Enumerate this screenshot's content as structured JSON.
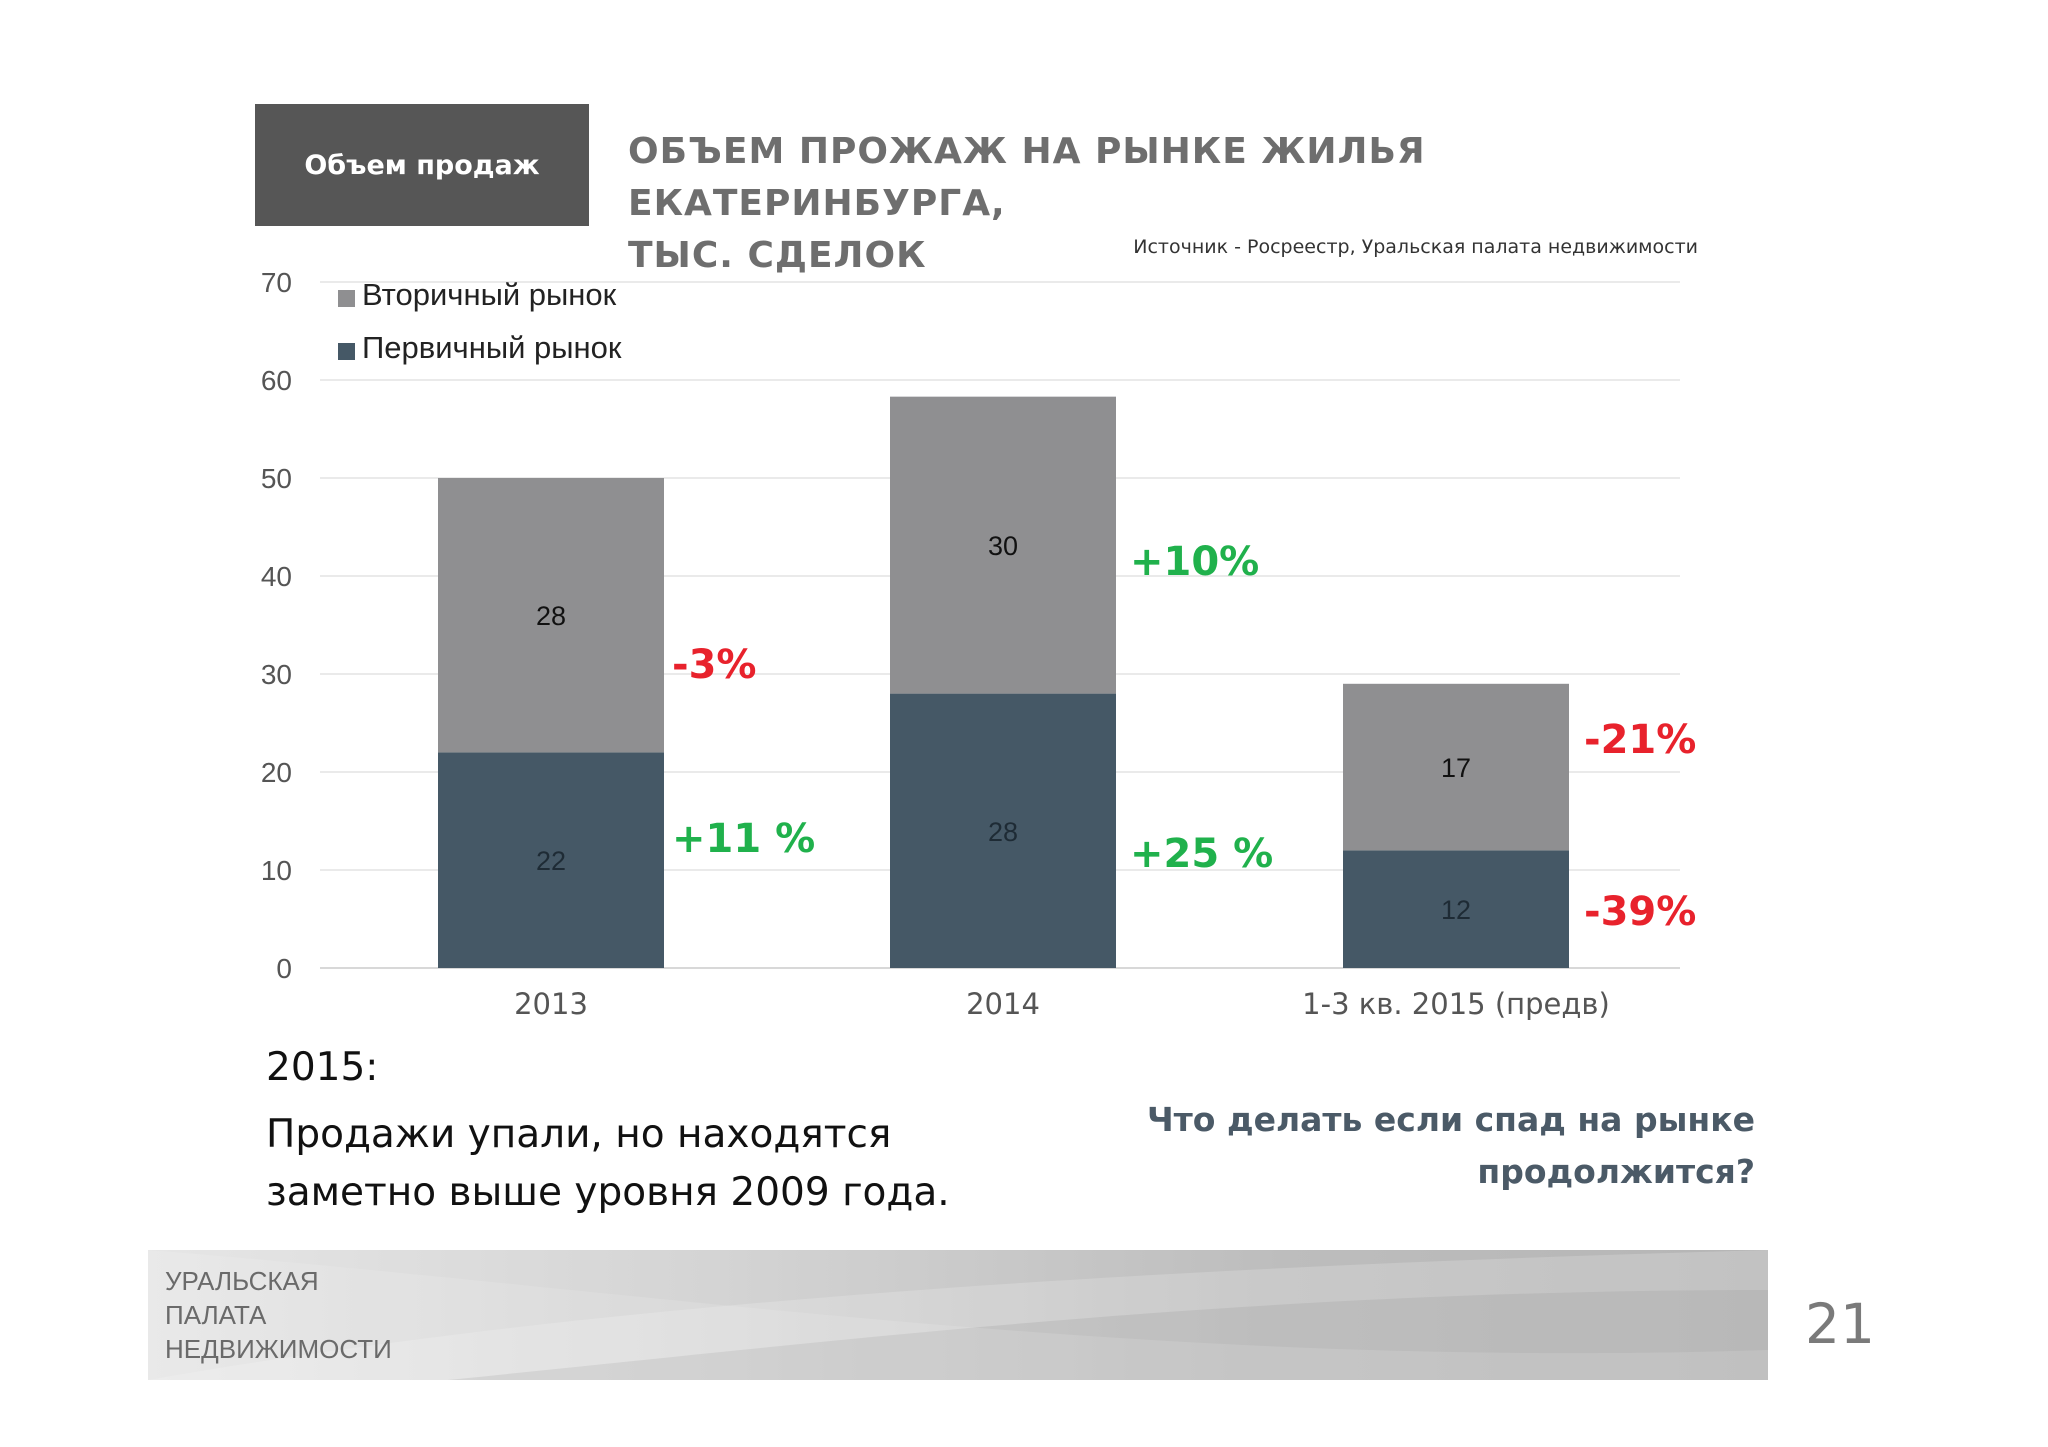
{
  "header": {
    "section_label": "Объем продаж",
    "title_line1": "ОБЪЕМ ПРОЖАЖ НА РЫНКЕ ЖИЛЬЯ ЕКАТЕРИНБУРГА,",
    "title_line2": "ТЫС. СДЕЛОК",
    "source": "Источник - Росреестр, Уральская палата недвижимости"
  },
  "chart_data": {
    "type": "bar",
    "stacked": true,
    "categories": [
      "2013",
      "2014",
      "1-3 кв. 2015 (предв)"
    ],
    "series": [
      {
        "name": "Первичный рынок",
        "values": [
          22,
          28,
          12
        ],
        "color": "#455866"
      },
      {
        "name": "Вторичный рынок",
        "values": [
          28,
          30,
          17
        ],
        "color": "#8f8f91"
      }
    ],
    "display_totals": [
      50,
      58.3,
      29
    ],
    "yticks": [
      "0",
      "10",
      "20",
      "30",
      "40",
      "50",
      "60",
      "70"
    ],
    "ylim": [
      0,
      70
    ],
    "grid": true,
    "legend_position": "top-left",
    "legend": [
      {
        "label": "Вторичный рынок",
        "color": "#8f8f91"
      },
      {
        "label": "Первичный рынок",
        "color": "#455866"
      }
    ],
    "annotations": [
      {
        "category": "2013",
        "series": "Вторичный рынок",
        "text": "-3%",
        "color": "#e8222c"
      },
      {
        "category": "2013",
        "series": "Первичный рынок",
        "text": "+11 %",
        "color": "#20b14c"
      },
      {
        "category": "2014",
        "series": "Вторичный рынок",
        "text": "+10%",
        "color": "#20b14c"
      },
      {
        "category": "2014",
        "series": "Первичный рынок",
        "text": "+25 %",
        "color": "#20b14c"
      },
      {
        "category": "1-3 кв. 2015 (предв)",
        "series": "Вторичный рынок",
        "text": "-21%",
        "color": "#e8222c"
      },
      {
        "category": "1-3 кв. 2015 (предв)",
        "series": "Первичный рынок",
        "text": "-39%",
        "color": "#e8222c"
      }
    ]
  },
  "caption": {
    "year": "2015:",
    "line1": "Продажи упали, но находятся",
    "line2": "заметно выше уровня 2009 года."
  },
  "question": {
    "line1": "Что делать если спад на рынке",
    "line2": "продолжится?"
  },
  "footer": {
    "logo_line1": "УРАЛЬСКАЯ",
    "logo_line2": "ПАЛАТА",
    "logo_line3": "НЕДВИЖИМОСТИ",
    "page_number": "21"
  }
}
